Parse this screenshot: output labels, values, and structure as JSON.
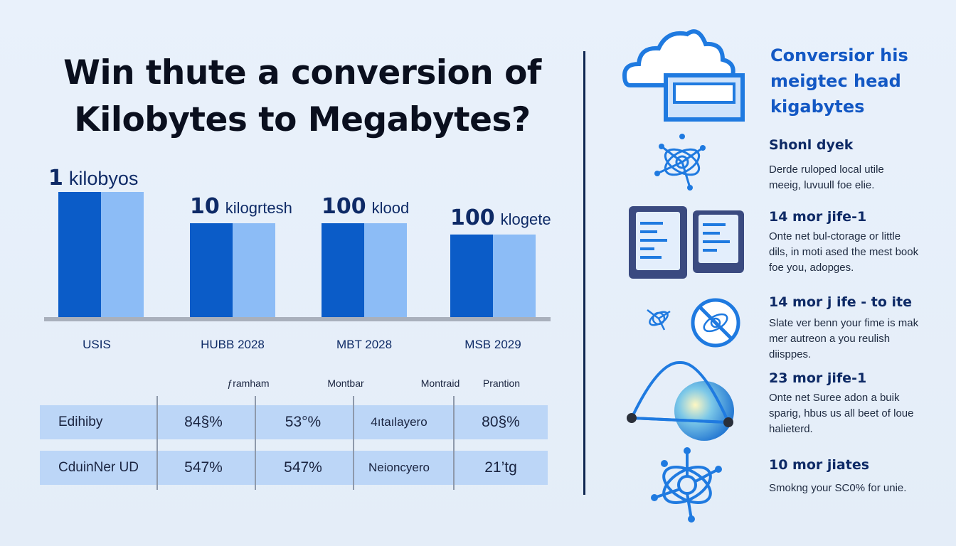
{
  "title": {
    "line1": "Win thute a conversion of",
    "line2": "Kilobytes to Megabytes?"
  },
  "chart_data": {
    "type": "bar",
    "categories": [
      "USIS",
      "HUBB 2028",
      "MBT 2028",
      "MSB 2029"
    ],
    "bar_labels": [
      {
        "big": "1",
        "small": "kilobyos"
      },
      {
        "big": "10",
        "small": "kilogrtesh"
      },
      {
        "big": "100",
        "small": "klood"
      },
      {
        "big": "100",
        "small": "klogete"
      }
    ],
    "series": [
      {
        "values": [
          100,
          75,
          75,
          66
        ],
        "color": "#0b5cc8"
      },
      {
        "values": [
          100,
          75,
          75,
          66
        ],
        "color": "#8cbcf6"
      }
    ],
    "ylim": [
      0,
      100
    ],
    "grid": false,
    "baseline_color": "#a9b0bc"
  },
  "table": {
    "headers": [
      "ƒramham",
      "Montbar",
      "Montraid",
      "Prantion"
    ],
    "rows": [
      {
        "label": "Edihiby",
        "cells": [
          "84§%",
          "53°%",
          "4ıtaılayero",
          "80§%"
        ]
      },
      {
        "label": "CduinNer UD",
        "cells": [
          "547%",
          "547%",
          "Neioncyero",
          "21’tg"
        ]
      }
    ]
  },
  "sidebar": {
    "title": [
      "Conversior his",
      "meigtec head",
      "kigabytes"
    ],
    "items": [
      {
        "heading": "Shonl dyek",
        "lines": [
          "Derde ruloped local utile",
          "meeig, luvuull foe elie."
        ],
        "icon": "network-icon"
      },
      {
        "heading": "14 mor jife-1",
        "lines": [
          "Onte net bul-ctorage or little",
          "dils, in moti ased the mest book",
          "foe you, adopges."
        ],
        "icon": "document-icon"
      },
      {
        "heading": "14 mor j ife - to ite",
        "lines": [
          "Slate ver benn your fime is mak",
          "mer autreon a you reulish",
          "diisppes."
        ],
        "icon": "no-network-icon"
      },
      {
        "heading": "23 mor jife-1",
        "lines": [
          "Onte net Suree adon a buik",
          "sparig, hbus us all beet of loue",
          "halieterd."
        ],
        "icon": "triangle-sphere-icon"
      },
      {
        "heading": "10 mor jiates",
        "lines": [
          "Smokng your SC0% for unie."
        ],
        "icon": "network-icon"
      }
    ],
    "colors": {
      "accent": "#1358c4",
      "icon_blue": "#1f7ae0",
      "dark_navy": "#0e2650"
    }
  }
}
